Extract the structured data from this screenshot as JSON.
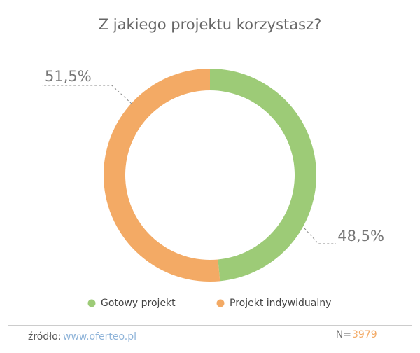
{
  "chart_data": {
    "type": "donut",
    "title": "Z jakiego projektu korzystasz?",
    "categories": [
      "Gotowy projekt",
      "Projekt indywidualny"
    ],
    "values": [
      48.5,
      51.5
    ],
    "value_labels": [
      "48,5%",
      "51,5%"
    ],
    "colors": [
      "#9dcb77",
      "#f3aa65"
    ],
    "legend": "bottom"
  },
  "footer": {
    "source_label": "źródło:",
    "source_url": "www.oferteo.pl",
    "n_label": "N=",
    "n_value": "3979"
  }
}
